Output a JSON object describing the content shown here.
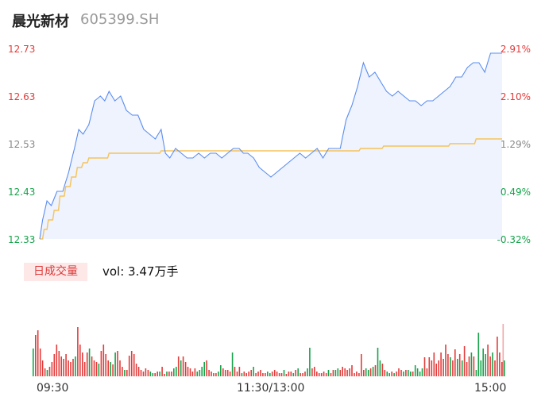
{
  "header": {
    "name": "晨光新材",
    "code": "605399.SH"
  },
  "colors": {
    "up": "#e33b3b",
    "down": "#16a34a",
    "neutral": "#888888",
    "price_line": "#5b8def",
    "avg_line": "#f5c35b",
    "fill": "#eef3fd"
  },
  "y_axis": {
    "price_labels": [
      "12.73",
      "12.63",
      "12.53",
      "12.43",
      "12.33"
    ],
    "pct_labels": [
      "2.91%",
      "2.10%",
      "1.29%",
      "0.49%",
      "-0.32%"
    ],
    "price_max": 12.73,
    "price_min": 12.33
  },
  "volume": {
    "tag": "日成交量",
    "text": "vol: 3.47万手"
  },
  "x_axis": {
    "labels": [
      "09:30",
      "11:30/13:00",
      "15:00"
    ]
  },
  "chart_data": {
    "type": "line",
    "series": [
      {
        "anchors": [
          [
            0,
            12.33
          ],
          [
            2,
            12.37
          ],
          [
            5,
            12.41
          ],
          [
            8,
            12.4
          ],
          [
            12,
            12.43
          ],
          [
            16,
            12.43
          ],
          [
            20,
            12.47
          ],
          [
            24,
            12.52
          ],
          [
            27,
            12.56
          ],
          [
            30,
            12.55
          ],
          [
            34,
            12.57
          ],
          [
            38,
            12.62
          ],
          [
            42,
            12.63
          ],
          [
            45,
            12.62
          ],
          [
            48,
            12.64
          ],
          [
            52,
            12.62
          ],
          [
            56,
            12.63
          ],
          [
            60,
            12.6
          ],
          [
            64,
            12.59
          ],
          [
            68,
            12.59
          ],
          [
            72,
            12.56
          ],
          [
            76,
            12.55
          ],
          [
            80,
            12.54
          ],
          [
            84,
            12.56
          ],
          [
            87,
            12.51
          ],
          [
            90,
            12.5
          ],
          [
            94,
            12.52
          ],
          [
            98,
            12.51
          ],
          [
            102,
            12.5
          ],
          [
            106,
            12.5
          ],
          [
            110,
            12.51
          ],
          [
            114,
            12.5
          ],
          [
            118,
            12.51
          ],
          [
            122,
            12.51
          ],
          [
            126,
            12.5
          ],
          [
            130,
            12.51
          ],
          [
            134,
            12.52
          ],
          [
            138,
            12.52
          ],
          [
            141,
            12.51
          ],
          [
            144,
            12.51
          ],
          [
            148,
            12.5
          ],
          [
            152,
            12.48
          ],
          [
            156,
            12.47
          ],
          [
            160,
            12.46
          ],
          [
            164,
            12.47
          ],
          [
            168,
            12.48
          ],
          [
            172,
            12.49
          ],
          [
            176,
            12.5
          ],
          [
            180,
            12.51
          ],
          [
            184,
            12.5
          ],
          [
            188,
            12.51
          ],
          [
            192,
            12.52
          ],
          [
            196,
            12.5
          ],
          [
            200,
            12.52
          ],
          [
            204,
            12.52
          ],
          [
            208,
            12.52
          ],
          [
            212,
            12.58
          ],
          [
            216,
            12.61
          ],
          [
            220,
            12.65
          ],
          [
            224,
            12.7
          ],
          [
            228,
            12.67
          ],
          [
            232,
            12.68
          ],
          [
            236,
            12.66
          ],
          [
            240,
            12.64
          ],
          [
            244,
            12.63
          ],
          [
            248,
            12.64
          ],
          [
            252,
            12.63
          ],
          [
            256,
            12.62
          ],
          [
            260,
            12.62
          ],
          [
            264,
            12.61
          ],
          [
            268,
            12.62
          ],
          [
            272,
            12.62
          ],
          [
            276,
            12.63
          ],
          [
            280,
            12.64
          ],
          [
            284,
            12.65
          ],
          [
            288,
            12.67
          ],
          [
            292,
            12.67
          ],
          [
            296,
            12.69
          ],
          [
            300,
            12.7
          ],
          [
            304,
            12.7
          ],
          [
            308,
            12.68
          ],
          [
            312,
            12.72
          ],
          [
            316,
            12.72
          ],
          [
            320,
            12.72
          ]
        ]
      },
      {
        "anchors": [
          [
            0,
            12.33
          ],
          [
            3,
            12.35
          ],
          [
            6,
            12.37
          ],
          [
            10,
            12.39
          ],
          [
            14,
            12.42
          ],
          [
            18,
            12.44
          ],
          [
            22,
            12.46
          ],
          [
            26,
            12.48
          ],
          [
            30,
            12.49
          ],
          [
            34,
            12.5
          ],
          [
            36,
            12.5
          ],
          [
            45,
            12.5
          ],
          [
            48,
            12.51
          ],
          [
            80,
            12.51
          ],
          [
            84,
            12.515
          ],
          [
            220,
            12.515
          ],
          [
            222,
            12.52
          ],
          [
            236,
            12.52
          ],
          [
            238,
            12.525
          ],
          [
            282,
            12.525
          ],
          [
            284,
            12.53
          ],
          [
            300,
            12.53
          ],
          [
            302,
            12.54
          ],
          [
            315,
            12.54
          ],
          [
            320,
            12.54
          ]
        ]
      }
    ],
    "bars": [
      [
        1,
        35,
        "d"
      ],
      [
        2,
        52,
        "u"
      ],
      [
        3,
        58,
        "u"
      ],
      [
        4,
        35,
        "u"
      ],
      [
        5,
        20,
        "u"
      ],
      [
        6,
        10,
        "u"
      ],
      [
        7,
        8,
        "d"
      ],
      [
        8,
        12,
        "u"
      ],
      [
        9,
        18,
        "u"
      ],
      [
        10,
        28,
        "u"
      ],
      [
        11,
        40,
        "u"
      ],
      [
        12,
        32,
        "u"
      ],
      [
        13,
        25,
        "u"
      ],
      [
        14,
        22,
        "u"
      ],
      [
        15,
        28,
        "u"
      ],
      [
        16,
        20,
        "u"
      ],
      [
        17,
        18,
        "u"
      ],
      [
        18,
        22,
        "u"
      ],
      [
        19,
        25,
        "d"
      ],
      [
        20,
        62,
        "u"
      ],
      [
        21,
        40,
        "u"
      ],
      [
        22,
        30,
        "u"
      ],
      [
        23,
        18,
        "u"
      ],
      [
        24,
        30,
        "u"
      ],
      [
        25,
        35,
        "d"
      ],
      [
        26,
        25,
        "u"
      ],
      [
        27,
        20,
        "u"
      ],
      [
        28,
        18,
        "u"
      ],
      [
        29,
        16,
        "d"
      ],
      [
        30,
        32,
        "u"
      ],
      [
        31,
        40,
        "u"
      ],
      [
        32,
        28,
        "u"
      ],
      [
        33,
        20,
        "u"
      ],
      [
        34,
        18,
        "d"
      ],
      [
        35,
        15,
        "u"
      ],
      [
        36,
        30,
        "d"
      ],
      [
        37,
        32,
        "u"
      ],
      [
        38,
        20,
        "u"
      ],
      [
        39,
        12,
        "u"
      ],
      [
        40,
        8,
        "d"
      ],
      [
        41,
        8,
        "u"
      ],
      [
        42,
        26,
        "u"
      ],
      [
        43,
        32,
        "u"
      ],
      [
        44,
        28,
        "u"
      ],
      [
        45,
        16,
        "u"
      ],
      [
        46,
        12,
        "u"
      ],
      [
        47,
        8,
        "u"
      ],
      [
        48,
        6,
        "u"
      ],
      [
        49,
        10,
        "u"
      ],
      [
        50,
        8,
        "u"
      ],
      [
        51,
        6,
        "d"
      ],
      [
        52,
        4,
        "d"
      ],
      [
        53,
        4,
        "u"
      ],
      [
        54,
        6,
        "u"
      ],
      [
        55,
        6,
        "d"
      ],
      [
        56,
        12,
        "u"
      ],
      [
        57,
        3,
        "u"
      ],
      [
        58,
        6,
        "d"
      ],
      [
        59,
        6,
        "u"
      ],
      [
        60,
        6,
        "u"
      ],
      [
        61,
        10,
        "d"
      ],
      [
        62,
        12,
        "d"
      ],
      [
        63,
        25,
        "u"
      ],
      [
        64,
        20,
        "d"
      ],
      [
        65,
        25,
        "u"
      ],
      [
        66,
        18,
        "u"
      ],
      [
        67,
        12,
        "u"
      ],
      [
        68,
        10,
        "u"
      ],
      [
        69,
        6,
        "u"
      ],
      [
        70,
        10,
        "u"
      ],
      [
        71,
        6,
        "d"
      ],
      [
        72,
        8,
        "d"
      ],
      [
        73,
        12,
        "d"
      ],
      [
        74,
        18,
        "d"
      ],
      [
        75,
        20,
        "u"
      ],
      [
        76,
        8,
        "u"
      ],
      [
        77,
        6,
        "u"
      ],
      [
        78,
        4,
        "u"
      ],
      [
        79,
        4,
        "u"
      ],
      [
        80,
        6,
        "d"
      ],
      [
        81,
        14,
        "d"
      ],
      [
        82,
        10,
        "u"
      ],
      [
        83,
        8,
        "u"
      ],
      [
        84,
        8,
        "u"
      ],
      [
        85,
        6,
        "u"
      ],
      [
        86,
        30,
        "d"
      ],
      [
        87,
        12,
        "u"
      ],
      [
        88,
        6,
        "u"
      ],
      [
        89,
        12,
        "u"
      ],
      [
        90,
        4,
        "d"
      ],
      [
        91,
        6,
        "u"
      ],
      [
        92,
        4,
        "u"
      ],
      [
        93,
        6,
        "u"
      ],
      [
        94,
        8,
        "u"
      ],
      [
        95,
        12,
        "d"
      ],
      [
        96,
        4,
        "u"
      ],
      [
        97,
        6,
        "u"
      ],
      [
        98,
        8,
        "u"
      ],
      [
        99,
        4,
        "u"
      ],
      [
        100,
        4,
        "u"
      ],
      [
        101,
        6,
        "d"
      ],
      [
        102,
        4,
        "d"
      ],
      [
        103,
        6,
        "u"
      ],
      [
        104,
        8,
        "u"
      ],
      [
        105,
        6,
        "u"
      ],
      [
        106,
        4,
        "u"
      ],
      [
        107,
        4,
        "u"
      ],
      [
        108,
        8,
        "d"
      ],
      [
        109,
        3,
        "u"
      ],
      [
        110,
        6,
        "u"
      ],
      [
        111,
        6,
        "u"
      ],
      [
        112,
        4,
        "d"
      ],
      [
        113,
        8,
        "u"
      ],
      [
        114,
        10,
        "d"
      ],
      [
        115,
        4,
        "u"
      ],
      [
        116,
        4,
        "u"
      ],
      [
        117,
        6,
        "u"
      ],
      [
        118,
        10,
        "d"
      ],
      [
        119,
        36,
        "d"
      ],
      [
        120,
        10,
        "u"
      ],
      [
        121,
        12,
        "u"
      ],
      [
        122,
        6,
        "u"
      ],
      [
        123,
        4,
        "u"
      ],
      [
        124,
        4,
        "u"
      ],
      [
        125,
        6,
        "u"
      ],
      [
        126,
        4,
        "u"
      ],
      [
        127,
        8,
        "d"
      ],
      [
        128,
        4,
        "u"
      ],
      [
        129,
        8,
        "u"
      ],
      [
        130,
        8,
        "d"
      ],
      [
        131,
        10,
        "d"
      ],
      [
        132,
        8,
        "u"
      ],
      [
        133,
        12,
        "u"
      ],
      [
        134,
        10,
        "u"
      ],
      [
        135,
        8,
        "u"
      ],
      [
        136,
        10,
        "u"
      ],
      [
        137,
        14,
        "u"
      ],
      [
        138,
        4,
        "u"
      ],
      [
        139,
        6,
        "u"
      ],
      [
        140,
        4,
        "u"
      ],
      [
        141,
        28,
        "u"
      ],
      [
        142,
        8,
        "u"
      ],
      [
        143,
        10,
        "d"
      ],
      [
        144,
        8,
        "d"
      ],
      [
        145,
        10,
        "u"
      ],
      [
        146,
        12,
        "d"
      ],
      [
        147,
        14,
        "u"
      ],
      [
        148,
        36,
        "d"
      ],
      [
        149,
        20,
        "d"
      ],
      [
        150,
        16,
        "u"
      ],
      [
        151,
        8,
        "u"
      ],
      [
        152,
        6,
        "d"
      ],
      [
        153,
        4,
        "d"
      ],
      [
        154,
        6,
        "u"
      ],
      [
        155,
        4,
        "d"
      ],
      [
        156,
        6,
        "u"
      ],
      [
        157,
        10,
        "u"
      ],
      [
        158,
        8,
        "u"
      ],
      [
        159,
        6,
        "d"
      ],
      [
        160,
        8,
        "u"
      ],
      [
        161,
        8,
        "d"
      ],
      [
        162,
        6,
        "d"
      ],
      [
        163,
        6,
        "u"
      ],
      [
        164,
        14,
        "d"
      ],
      [
        165,
        10,
        "d"
      ],
      [
        166,
        6,
        "d"
      ],
      [
        167,
        10,
        "d"
      ],
      [
        168,
        24,
        "u"
      ],
      [
        169,
        10,
        "u"
      ],
      [
        170,
        24,
        "u"
      ],
      [
        171,
        20,
        "u"
      ],
      [
        172,
        30,
        "u"
      ],
      [
        173,
        16,
        "u"
      ],
      [
        174,
        20,
        "u"
      ],
      [
        175,
        30,
        "u"
      ],
      [
        176,
        22,
        "u"
      ],
      [
        177,
        40,
        "u"
      ],
      [
        178,
        28,
        "u"
      ],
      [
        179,
        24,
        "d"
      ],
      [
        180,
        20,
        "u"
      ],
      [
        181,
        34,
        "u"
      ],
      [
        182,
        22,
        "d"
      ],
      [
        183,
        28,
        "u"
      ],
      [
        184,
        20,
        "d"
      ],
      [
        185,
        38,
        "u"
      ],
      [
        186,
        18,
        "u"
      ],
      [
        187,
        25,
        "u"
      ],
      [
        188,
        30,
        "d"
      ],
      [
        189,
        25,
        "u"
      ],
      [
        190,
        8,
        "d"
      ],
      [
        191,
        55,
        "d"
      ],
      [
        192,
        20,
        "d"
      ],
      [
        193,
        35,
        "d"
      ],
      [
        194,
        28,
        "d"
      ],
      [
        195,
        40,
        "u"
      ],
      [
        196,
        25,
        "u"
      ],
      [
        197,
        30,
        "d"
      ],
      [
        198,
        20,
        "u"
      ],
      [
        199,
        50,
        "u"
      ],
      [
        200,
        30,
        "u"
      ],
      [
        201,
        18,
        "u"
      ],
      [
        202,
        20,
        "d"
      ]
    ]
  }
}
